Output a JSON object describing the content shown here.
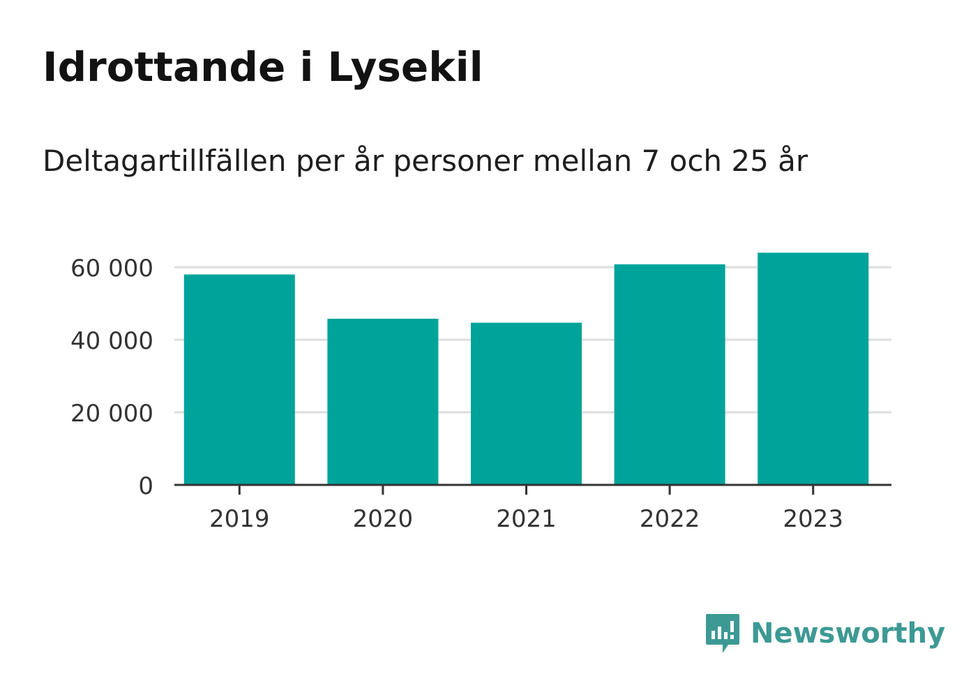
{
  "title": "Idrottande i Lysekil",
  "subtitle": "Deltagartillfällen per år personer mellan 7 och 25 år",
  "chart_data": {
    "type": "bar",
    "title": "Idrottande i Lysekil",
    "subtitle": "Deltagartillfällen per år personer mellan 7 och 25 år",
    "categories": [
      "2019",
      "2020",
      "2021",
      "2022",
      "2023"
    ],
    "values": [
      58000,
      45800,
      44700,
      60800,
      64000
    ],
    "ylim": [
      0,
      64000
    ],
    "yticks": [
      0,
      20000,
      40000,
      60000
    ],
    "ytick_labels": [
      "0",
      "20 000",
      "40 000",
      "60 000"
    ],
    "grid": true,
    "bar_color": "#00a39a"
  },
  "brand": {
    "name": "Newsworthy",
    "icon": "newsworthy-logo-icon",
    "color": "#3d9994"
  }
}
